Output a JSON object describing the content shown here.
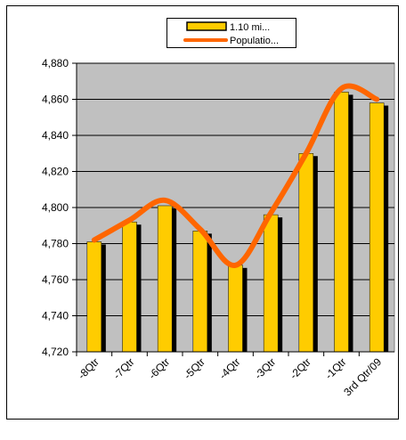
{
  "chart_data": {
    "type": "bar",
    "categories": [
      "-8Qtr",
      "-7Qtr",
      "-6Qtr",
      "-5Qtr",
      "-4Qtr",
      "-3Qtr",
      "-2Qtr",
      "-1Qtr",
      "3rd Qtr/09"
    ],
    "series": [
      {
        "name": "1.10 mi...",
        "type": "bar",
        "color": "#FFCC00",
        "values": [
          4781,
          4792,
          4801,
          4787,
          4768,
          4796,
          4830,
          4864,
          4858
        ]
      },
      {
        "name": "Populatio...",
        "type": "line",
        "color": "#FF6600",
        "values": [
          4782,
          4793,
          4804,
          4788,
          4768,
          4797,
          4830,
          4866,
          4860
        ]
      }
    ],
    "y_ticks": [
      "4,720",
      "4,740",
      "4,760",
      "4,780",
      "4,800",
      "4,820",
      "4,840",
      "4,860",
      "4,880"
    ],
    "ylim": [
      4720,
      4880
    ],
    "grid": true,
    "legend_position": "top",
    "colors": {
      "plot_background": "#C0C0C0",
      "bar_shadow": "#000000",
      "gridline": "#000000"
    }
  }
}
